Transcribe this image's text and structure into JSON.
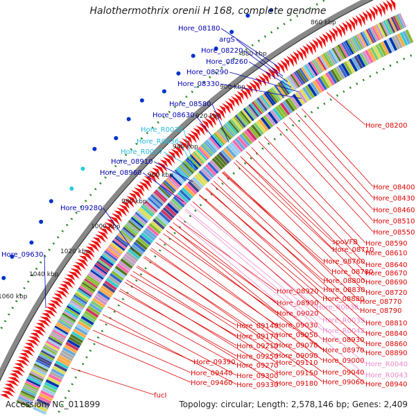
{
  "title": "Halothermothrix orenii H 168, complete genome",
  "footer": {
    "accession": "Accession: NC_011899",
    "topology": "Topology: circular; Length: 2,578,146 bp; Genes: 2,409"
  },
  "colors": {
    "blue_label": "#0000b0",
    "cyan_label": "#22bbdd",
    "red_label": "#dd0000",
    "pink_label": "#ee88cc",
    "tick_green": "#228822",
    "gene_red": "#ee1111",
    "backbone": "#888888"
  },
  "kbp_ticks": [
    "860 kbp",
    "880 kbp",
    "900 kbp",
    "920 kbp",
    "940 kbp",
    "960 kbp",
    "980 kbp",
    "1000 kbp",
    "1020 kbp",
    "1040 kbp",
    "1060 kbp"
  ],
  "outer_labels": [
    {
      "text": "Hore_08180",
      "kind": "blue"
    },
    {
      "text": "argS",
      "kind": "blue"
    },
    {
      "text": "Hore_08220",
      "kind": "blue"
    },
    {
      "text": "Hore_08260",
      "kind": "blue"
    },
    {
      "text": "Hore_08290",
      "kind": "blue"
    },
    {
      "text": "Hore_08330",
      "kind": "blue"
    },
    {
      "text": "Hore_08580",
      "kind": "blue"
    },
    {
      "text": "Hore_08630",
      "kind": "blue"
    },
    {
      "text": "Hore_R0035",
      "kind": "cyan"
    },
    {
      "text": "Hore_R0036",
      "kind": "cyan"
    },
    {
      "text": "Hore_R0037",
      "kind": "cyan"
    },
    {
      "text": "Hore_08910",
      "kind": "blue"
    },
    {
      "text": "Hore_08960",
      "kind": "blue"
    },
    {
      "text": "Hore_09280",
      "kind": "blue"
    },
    {
      "text": "Hore_09630",
      "kind": "blue"
    }
  ],
  "inner_labels": [
    {
      "text": "Hore_08200",
      "kind": "red"
    },
    {
      "text": "Hore_08400",
      "kind": "red"
    },
    {
      "text": "Hore_08430",
      "kind": "red"
    },
    {
      "text": "Hore_08460",
      "kind": "red"
    },
    {
      "text": "Hore_08510",
      "kind": "red"
    },
    {
      "text": "Hore_08550",
      "kind": "red"
    },
    {
      "text": "Hore_08590",
      "kind": "red"
    },
    {
      "text": "spoVFB",
      "kind": "red"
    },
    {
      "text": "Hore_08610",
      "kind": "red"
    },
    {
      "text": "Hore_08710",
      "kind": "red"
    },
    {
      "text": "Hore_08640",
      "kind": "red"
    },
    {
      "text": "Hore_08760",
      "kind": "red"
    },
    {
      "text": "Hore_08670",
      "kind": "red"
    },
    {
      "text": "Hore_08780",
      "kind": "red"
    },
    {
      "text": "Hore_08690",
      "kind": "red"
    },
    {
      "text": "Hore_08800",
      "kind": "red"
    },
    {
      "text": "Hore_08720",
      "kind": "red"
    },
    {
      "text": "Hore_08920",
      "kind": "red"
    },
    {
      "text": "Hore_08830",
      "kind": "red"
    },
    {
      "text": "Hore_08770",
      "kind": "red"
    },
    {
      "text": "Hore_08990",
      "kind": "red"
    },
    {
      "text": "Hore_08880",
      "kind": "red"
    },
    {
      "text": "Hore_R0038",
      "kind": "pink"
    },
    {
      "text": "Hore_08790",
      "kind": "red"
    },
    {
      "text": "Hore_09020",
      "kind": "red"
    },
    {
      "text": "Hore_R0039",
      "kind": "pink"
    },
    {
      "text": "Hore_08810",
      "kind": "red"
    },
    {
      "text": "Hore_09140",
      "kind": "red"
    },
    {
      "text": "Hore_09030",
      "kind": "red"
    },
    {
      "text": "Hore_R0042",
      "kind": "pink"
    },
    {
      "text": "Hore_08840",
      "kind": "red"
    },
    {
      "text": "Hore_09170",
      "kind": "red"
    },
    {
      "text": "Hore_09050",
      "kind": "red"
    },
    {
      "text": "Hore_08930",
      "kind": "red"
    },
    {
      "text": "Hore_08860",
      "kind": "red"
    },
    {
      "text": "Hore_09210",
      "kind": "red"
    },
    {
      "text": "Hore_09070",
      "kind": "red"
    },
    {
      "text": "Hore_08970",
      "kind": "red"
    },
    {
      "text": "Hore_08890",
      "kind": "red"
    },
    {
      "text": "Hore_09250",
      "kind": "red"
    },
    {
      "text": "Hore_09090",
      "kind": "red"
    },
    {
      "text": "Hore_09000",
      "kind": "red"
    },
    {
      "text": "Hore_R0040",
      "kind": "pink"
    },
    {
      "text": "Hore_09390",
      "kind": "red"
    },
    {
      "text": "Hore_09270",
      "kind": "red"
    },
    {
      "text": "Hore_09110",
      "kind": "red"
    },
    {
      "text": "Hore_09040",
      "kind": "red"
    },
    {
      "text": "Hore_R0043",
      "kind": "pink"
    },
    {
      "text": "Hore_09440",
      "kind": "red"
    },
    {
      "text": "Hore_09300",
      "kind": "red"
    },
    {
      "text": "Hore_09150",
      "kind": "red"
    },
    {
      "text": "Hore_09060",
      "kind": "red"
    },
    {
      "text": "Hore_08940",
      "kind": "red"
    },
    {
      "text": "Hore_09460",
      "kind": "red"
    },
    {
      "text": "Hore_09330",
      "kind": "red"
    },
    {
      "text": "Hore_09180",
      "kind": "red"
    },
    {
      "text": "fucI",
      "kind": "red"
    }
  ]
}
